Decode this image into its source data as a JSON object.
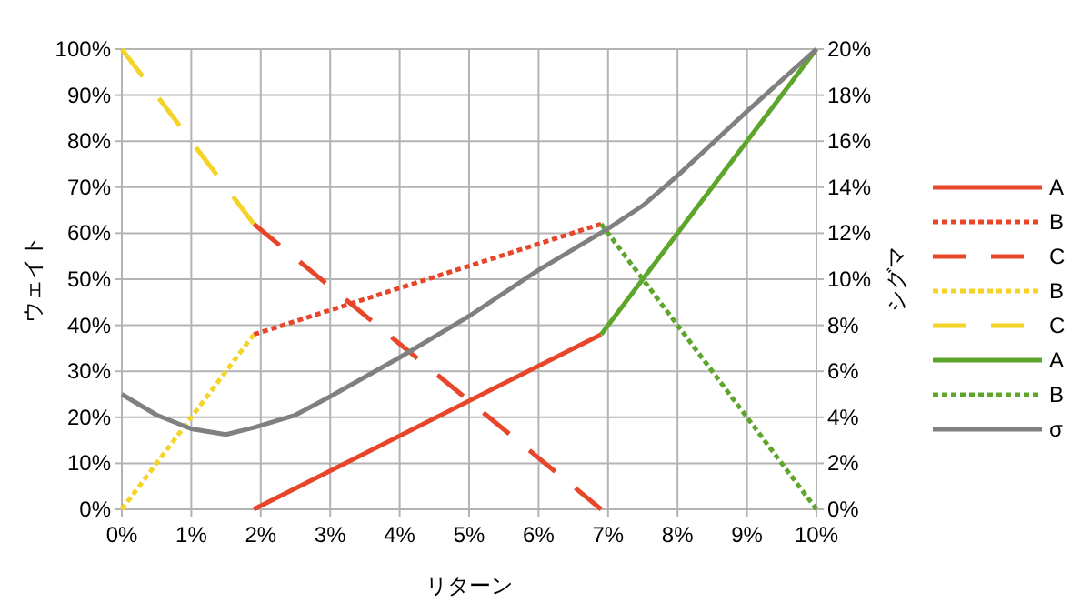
{
  "chart_data": {
    "type": "line",
    "xlabel": "リターン",
    "ylabel": "ウェイト",
    "y2label": "シグマ",
    "xlim": [
      0,
      10
    ],
    "xticks": [
      {
        "value": 0,
        "label": "0%"
      },
      {
        "value": 1,
        "label": "1%"
      },
      {
        "value": 2,
        "label": "2%"
      },
      {
        "value": 3,
        "label": "3%"
      },
      {
        "value": 4,
        "label": "4%"
      },
      {
        "value": 5,
        "label": "5%"
      },
      {
        "value": 6,
        "label": "6%"
      },
      {
        "value": 7,
        "label": "7%"
      },
      {
        "value": 8,
        "label": "8%"
      },
      {
        "value": 9,
        "label": "9%"
      },
      {
        "value": 10,
        "label": "10%"
      }
    ],
    "ylim": [
      0,
      100
    ],
    "yticks": [
      {
        "value": 0,
        "label": "0%"
      },
      {
        "value": 10,
        "label": "10%"
      },
      {
        "value": 20,
        "label": "20%"
      },
      {
        "value": 30,
        "label": "30%"
      },
      {
        "value": 40,
        "label": "40%"
      },
      {
        "value": 50,
        "label": "50%"
      },
      {
        "value": 60,
        "label": "60%"
      },
      {
        "value": 70,
        "label": "70%"
      },
      {
        "value": 80,
        "label": "80%"
      },
      {
        "value": 90,
        "label": "90%"
      },
      {
        "value": 100,
        "label": "100%"
      }
    ],
    "y2lim": [
      0,
      20
    ],
    "y2ticks": [
      {
        "value": 0,
        "label": "0%"
      },
      {
        "value": 2,
        "label": "2%"
      },
      {
        "value": 4,
        "label": "4%"
      },
      {
        "value": 6,
        "label": "6%"
      },
      {
        "value": 8,
        "label": "8%"
      },
      {
        "value": 10,
        "label": "10%"
      },
      {
        "value": 12,
        "label": "12%"
      },
      {
        "value": 14,
        "label": "14%"
      },
      {
        "value": 16,
        "label": "16%"
      },
      {
        "value": 18,
        "label": "18%"
      },
      {
        "value": 20,
        "label": "20%"
      }
    ],
    "grid": true,
    "legend": "right",
    "marker": "none",
    "series": [
      {
        "name": "A",
        "color": "#e8462a",
        "line_style": "solid",
        "x": [
          1.9,
          6.9
        ],
        "values": [
          0,
          38
        ]
      },
      {
        "name": "B",
        "color": "#e8462a",
        "line_style": "dotted",
        "x": [
          1.9,
          6.9
        ],
        "values": [
          38,
          62
        ]
      },
      {
        "name": "C",
        "color": "#e8462a",
        "line_style": "dashed",
        "x": [
          1.9,
          6.9
        ],
        "values": [
          62,
          0
        ]
      },
      {
        "name": "B",
        "color": "#f5d327",
        "line_style": "dotted",
        "x": [
          0,
          1.9
        ],
        "values": [
          0,
          38
        ]
      },
      {
        "name": "C",
        "color": "#f5d327",
        "line_style": "dashed",
        "x": [
          0,
          1.9
        ],
        "values": [
          100,
          62
        ]
      },
      {
        "name": "A",
        "color": "#5ea52b",
        "line_style": "solid",
        "x": [
          6.9,
          10
        ],
        "values": [
          38,
          100
        ]
      },
      {
        "name": "B",
        "color": "#5ea52b",
        "line_style": "dotted",
        "x": [
          6.9,
          10
        ],
        "values": [
          62,
          0
        ]
      },
      {
        "name": "σ",
        "color": "#808080",
        "line_style": "solid",
        "axis": "y2",
        "x": [
          0,
          0.5,
          1,
          1.5,
          1.9,
          2.5,
          3,
          4,
          5,
          6,
          7,
          7.5,
          8,
          9,
          10
        ],
        "values": [
          5,
          4.1,
          3.5,
          3.25,
          3.55,
          4.1,
          4.9,
          6.6,
          8.4,
          10.4,
          12.2,
          13.2,
          14.5,
          17.3,
          20
        ]
      }
    ]
  }
}
